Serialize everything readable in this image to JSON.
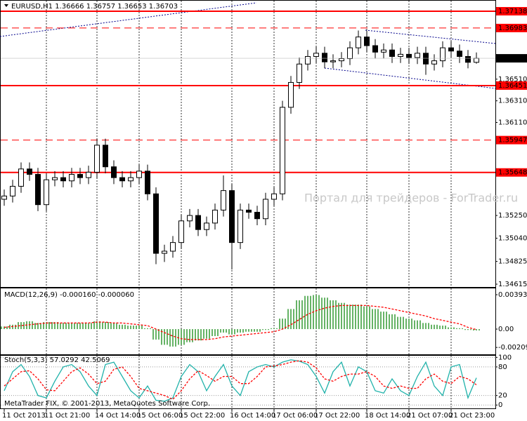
{
  "chart_data": [
    {
      "type": "candlestick",
      "title": "EURUSD,H1  1.36666 1.36757 1.36653 1.36703",
      "watermark": "Портал для трейдеров - ForTrader.ru",
      "categories": [
        "11 Oct 2013",
        null,
        null,
        null,
        null,
        "11 Oct 21:00",
        null,
        null,
        null,
        null,
        null,
        "14 Oct 14:00",
        null,
        null,
        null,
        null,
        "15 Oct 06:00",
        null,
        null,
        null,
        null,
        "15 Oct 22:00",
        null,
        null,
        null,
        null,
        null,
        "16 Oct 14:00",
        null,
        null,
        null,
        null,
        "17 Oct 06:00",
        null,
        null,
        null,
        null,
        "17 Oct 22:00",
        null,
        null,
        null,
        null,
        null,
        "18 Oct 14:00",
        null,
        null,
        null,
        null,
        "21 Oct 07:00",
        null,
        null,
        null,
        null,
        "21 Oct 23:00",
        null,
        null,
        null
      ],
      "open": [
        1.354,
        1.3543,
        1.3552,
        1.3568,
        1.3563,
        1.3535,
        1.3558,
        1.356,
        1.3557,
        1.3563,
        1.356,
        1.3565,
        1.359,
        1.357,
        1.356,
        1.3557,
        1.356,
        1.3566,
        1.3545,
        1.349,
        1.3492,
        1.35,
        1.352,
        1.3525,
        1.3512,
        1.3518,
        1.353,
        1.3548,
        1.35,
        1.353,
        1.3528,
        1.3522,
        1.354,
        1.3545,
        1.3625,
        1.3648,
        1.3665,
        1.3672,
        1.3675,
        1.3667,
        1.3668,
        1.367,
        1.368,
        1.369,
        1.3682,
        1.3676,
        1.3678,
        1.3672,
        1.3674,
        1.3671,
        1.3675,
        1.3665,
        1.3668,
        1.368,
        1.3677,
        1.3672,
        1.36666
      ],
      "high": [
        1.3549,
        1.3558,
        1.3574,
        1.3574,
        1.3569,
        1.3564,
        1.3566,
        1.3566,
        1.3569,
        1.3569,
        1.3571,
        1.3596,
        1.3596,
        1.3576,
        1.3566,
        1.3566,
        1.3572,
        1.3572,
        1.3551,
        1.3498,
        1.3506,
        1.3526,
        1.3531,
        1.3531,
        1.3524,
        1.3536,
        1.3562,
        1.3554,
        1.3536,
        1.3536,
        1.3534,
        1.3546,
        1.3551,
        1.3631,
        1.3654,
        1.3671,
        1.3678,
        1.3681,
        1.3681,
        1.3674,
        1.3676,
        1.3686,
        1.3696,
        1.3696,
        1.3688,
        1.3684,
        1.3684,
        1.368,
        1.368,
        1.3681,
        1.3681,
        1.3674,
        1.3686,
        1.3686,
        1.3683,
        1.3678,
        1.36757
      ],
      "low": [
        1.3534,
        1.3537,
        1.3546,
        1.3557,
        1.3529,
        1.3529,
        1.3552,
        1.3551,
        1.3551,
        1.3554,
        1.3554,
        1.3559,
        1.3564,
        1.3554,
        1.3551,
        1.3551,
        1.3554,
        1.3539,
        1.348,
        1.3482,
        1.3486,
        1.3494,
        1.3514,
        1.3506,
        1.3506,
        1.3512,
        1.3524,
        1.3475,
        1.3494,
        1.3522,
        1.3516,
        1.3516,
        1.3534,
        1.3539,
        1.3619,
        1.3642,
        1.3659,
        1.3666,
        1.3661,
        1.3661,
        1.3662,
        1.3664,
        1.3674,
        1.3676,
        1.367,
        1.367,
        1.3666,
        1.3666,
        1.3665,
        1.3665,
        1.3655,
        1.3659,
        1.3662,
        1.3671,
        1.3666,
        1.3661,
        1.36653
      ],
      "close": [
        1.3543,
        1.3552,
        1.3568,
        1.3563,
        1.3535,
        1.3558,
        1.356,
        1.3557,
        1.3563,
        1.356,
        1.3565,
        1.359,
        1.357,
        1.356,
        1.3557,
        1.356,
        1.3566,
        1.3545,
        1.349,
        1.3492,
        1.35,
        1.352,
        1.3525,
        1.3512,
        1.3518,
        1.353,
        1.3548,
        1.35,
        1.353,
        1.3528,
        1.3522,
        1.354,
        1.3545,
        1.3625,
        1.3648,
        1.3665,
        1.3672,
        1.3675,
        1.3667,
        1.3668,
        1.367,
        1.368,
        1.369,
        1.3682,
        1.3676,
        1.3678,
        1.3672,
        1.3674,
        1.3671,
        1.3675,
        1.3665,
        1.3668,
        1.368,
        1.3677,
        1.3672,
        1.36666,
        1.36703
      ],
      "ylim": [
        1.34589,
        1.37229
      ],
      "yticks": [
        {
          "value": 1.3651,
          "label": "1.36510"
        },
        {
          "value": 1.3631,
          "label": "1.36310"
        },
        {
          "value": 1.3611,
          "label": "1.36110"
        },
        {
          "value": 1.3525,
          "label": "1.35250"
        },
        {
          "value": 1.3504,
          "label": "1.35040"
        },
        1.34825,
        1.34615
      ],
      "levels": [
        {
          "value": 1.37138,
          "style": "solid"
        },
        {
          "value": 1.36983,
          "style": "dashed"
        },
        {
          "value": 1.36451,
          "style": "solid"
        },
        {
          "value": 1.35947,
          "style": "dashed"
        },
        {
          "value": 1.35648,
          "style": "solid"
        }
      ],
      "level_color": "#ff0000",
      "grid": true
    },
    {
      "type": "macd",
      "title": "MACD(12,26,9) -0.000160 -0.000060",
      "series": [
        {
          "kind": "histogram",
          "color": "#008000",
          "values": [
            0.0003,
            0.0005,
            0.0008,
            0.0009,
            0.0007,
            0.0008,
            0.0008,
            0.0007,
            0.0007,
            0.0007,
            0.0007,
            0.0009,
            0.0008,
            0.0007,
            0.0005,
            0.0004,
            0.0004,
            0.0001,
            -0.0012,
            -0.0018,
            -0.002,
            -0.0018,
            -0.0015,
            -0.0013,
            -0.0011,
            -0.0008,
            -0.0004,
            -0.0006,
            -0.0004,
            -0.0003,
            -0.0003,
            -0.0001,
            0.0001,
            0.0012,
            0.0023,
            0.0033,
            0.0038,
            0.0039,
            0.0036,
            0.0033,
            0.003,
            0.0028,
            0.0028,
            0.0026,
            0.0023,
            0.002,
            0.0017,
            0.0014,
            0.0012,
            0.001,
            0.0007,
            0.0005,
            0.0004,
            0.0002,
            0.0001,
            -0.0001,
            -0.00016
          ]
        },
        {
          "kind": "line",
          "dashed": true,
          "color": "#ff0000",
          "values": [
            0.0002,
            0.0003,
            0.0004,
            0.0005,
            0.0006,
            0.0007,
            0.0007,
            0.0007,
            0.0007,
            0.0007,
            0.0007,
            0.0008,
            0.0008,
            0.0007,
            0.0007,
            0.0006,
            0.0005,
            0.0004,
            0.0,
            -0.0004,
            -0.0008,
            -0.0011,
            -0.0012,
            -0.0012,
            -0.0012,
            -0.0011,
            -0.0009,
            -0.0008,
            -0.0007,
            -0.0006,
            -0.0005,
            -0.0004,
            -0.0003,
            0.0,
            0.0005,
            0.0011,
            0.0017,
            0.0021,
            0.0024,
            0.0026,
            0.0027,
            0.0027,
            0.0027,
            0.0027,
            0.0026,
            0.0025,
            0.0023,
            0.0021,
            0.0019,
            0.0017,
            0.0015,
            0.0012,
            0.001,
            0.0008,
            0.0006,
            0.0002,
            -6e-05
          ]
        }
      ],
      "ylim": [
        -0.00289,
        0.00458
      ],
      "yticks": [
        0.003936,
        {
          "value": 0,
          "label": "0.00"
        },
        -0.002099
      ]
    },
    {
      "type": "stochastic",
      "title": "Stoch(5,3,3) 57.0292 42.5069",
      "footer": "MetaTrader FIX, © 2001-2013, MetaQuotes Software Corp.",
      "series": [
        {
          "kind": "line",
          "dashed": false,
          "color": "#20b2aa",
          "values": [
            30,
            70,
            85,
            60,
            20,
            15,
            50,
            80,
            85,
            70,
            40,
            20,
            85,
            90,
            60,
            30,
            15,
            40,
            10,
            8,
            15,
            60,
            85,
            70,
            30,
            60,
            85,
            40,
            20,
            70,
            80,
            85,
            80,
            90,
            95,
            92,
            85,
            60,
            25,
            70,
            90,
            40,
            80,
            70,
            30,
            25,
            55,
            30,
            20,
            60,
            90,
            40,
            20,
            80,
            85,
            15,
            57.0292
          ]
        },
        {
          "kind": "line",
          "dashed": true,
          "color": "#ff0000",
          "values": [
            40,
            55,
            70,
            72,
            55,
            32,
            30,
            50,
            70,
            78,
            65,
            45,
            50,
            75,
            80,
            60,
            35,
            30,
            25,
            20,
            12,
            30,
            55,
            72,
            62,
            50,
            60,
            60,
            45,
            45,
            60,
            80,
            82,
            85,
            90,
            93,
            90,
            78,
            55,
            50,
            60,
            65,
            65,
            70,
            60,
            40,
            35,
            40,
            35,
            35,
            55,
            65,
            50,
            45,
            60,
            55,
            42.5069
          ]
        }
      ],
      "ylim": [
        -7,
        102
      ],
      "yticks": [
        100,
        80,
        20,
        0
      ]
    }
  ]
}
